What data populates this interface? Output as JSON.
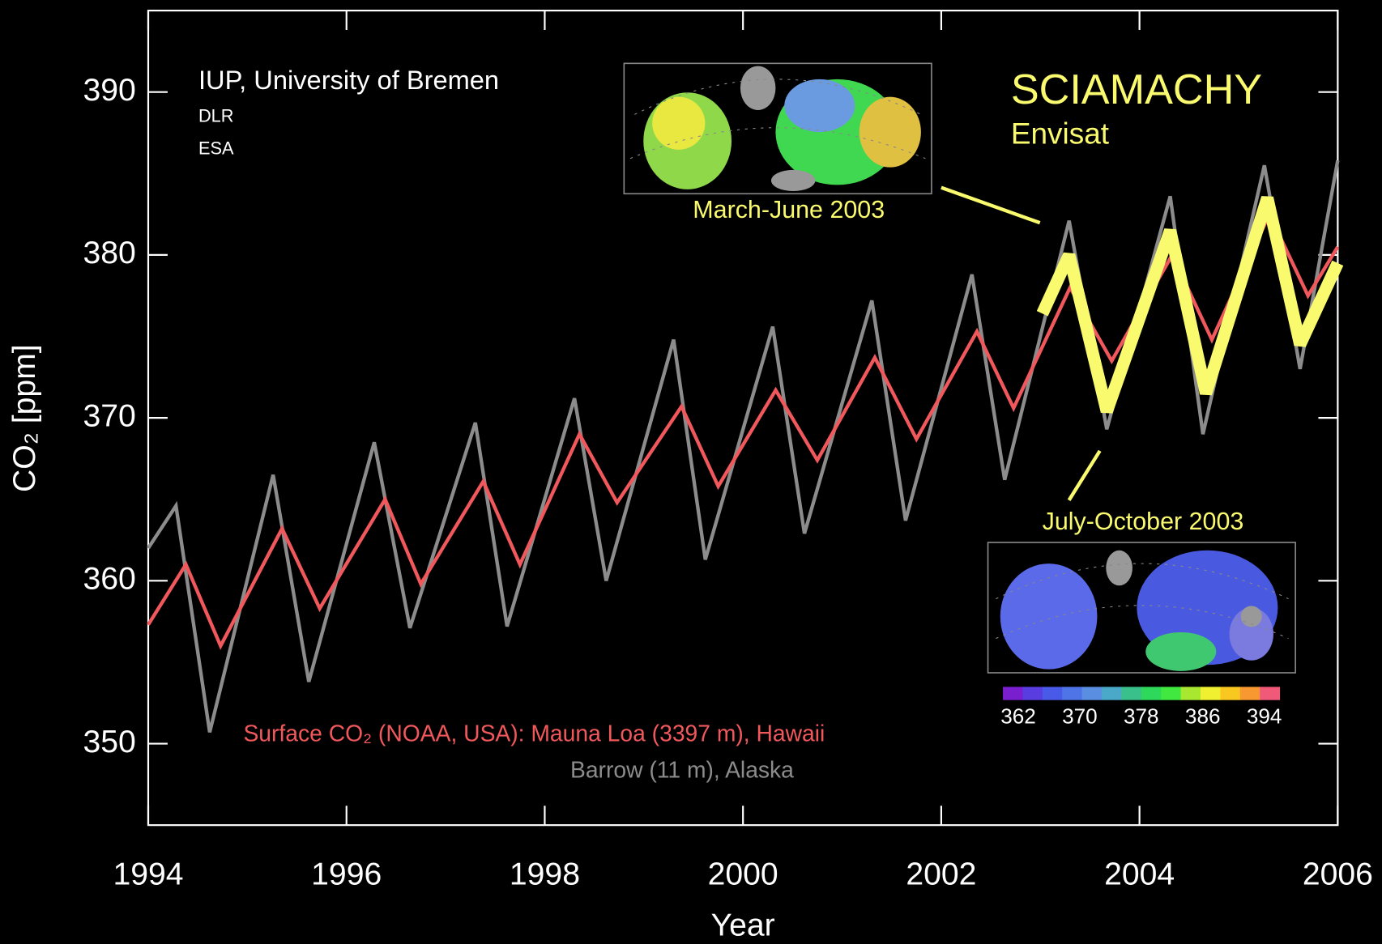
{
  "chart_data": {
    "type": "line",
    "x_label": "Year",
    "y_label": "CO₂ [ppm]",
    "xlim": [
      1994,
      2006
    ],
    "xticks": [
      1994,
      1996,
      1998,
      2000,
      2002,
      2004,
      2006
    ],
    "ylim": [
      345,
      395
    ],
    "yticks": [
      350,
      360,
      370,
      380,
      390
    ],
    "series": [
      {
        "name": "Barrow (11 m), Alaska",
        "color": "#8c8c8c",
        "linewidth": 4,
        "x": [
          1994.0,
          1994.28,
          1994.62,
          1995.26,
          1995.62,
          1996.28,
          1996.64,
          1997.3,
          1997.62,
          1998.3,
          1998.62,
          1999.3,
          1999.62,
          2000.3,
          2000.62,
          2001.3,
          2001.64,
          2002.31,
          2002.64,
          2003.29,
          2003.67,
          2004.31,
          2004.64,
          2005.26,
          2005.62,
          2006.0
        ],
        "values": [
          362,
          364.6,
          350.7,
          366.5,
          353.8,
          368.5,
          357.1,
          369.7,
          357.2,
          371.2,
          360.0,
          374.8,
          361.3,
          375.6,
          362.9,
          377.2,
          363.7,
          378.8,
          366.2,
          382.1,
          369.3,
          383.6,
          369.0,
          385.5,
          373.0,
          385.8
        ]
      },
      {
        "name": "Surface CO₂ (NOAA, USA): Mauna Loa (3397 m), Hawaii",
        "color": "#f0585c",
        "linewidth": 4,
        "x": [
          1994.0,
          1994.38,
          1994.73,
          1995.35,
          1995.73,
          1996.39,
          1996.75,
          1997.38,
          1997.75,
          1998.35,
          1998.73,
          1999.38,
          1999.75,
          2000.33,
          2000.75,
          2001.33,
          2001.75,
          2002.36,
          2002.73,
          2003.3,
          2003.72,
          2004.33,
          2004.73,
          2005.31,
          2005.7,
          2006.0
        ],
        "values": [
          357.3,
          361.0,
          356.0,
          363.2,
          358.3,
          365.0,
          359.8,
          366.1,
          361.0,
          369.0,
          364.8,
          370.7,
          365.8,
          371.7,
          367.4,
          373.7,
          368.7,
          375.3,
          370.6,
          378.0,
          373.5,
          380.0,
          374.8,
          382.5,
          377.5,
          380.5
        ]
      },
      {
        "name": "SCIAMACHY",
        "color": "#fafa6e",
        "linewidth": 14,
        "x": [
          2003.02,
          2003.29,
          2003.67,
          2004.31,
          2004.67,
          2005.29,
          2005.62,
          2006.0
        ],
        "values": [
          376.4,
          380.0,
          370.4,
          381.5,
          371.5,
          383.5,
          374.5,
          379.5
        ]
      }
    ],
    "annotations": {
      "institute": "IUP, University of Bremen",
      "partner1": "DLR",
      "partner2": "ESA",
      "satellite": "Envisat",
      "map1_label": "March-June 2003",
      "map2_label": "July-October 2003"
    },
    "colorbar": {
      "lim": [
        360,
        396
      ],
      "ticks": [
        362,
        370,
        378,
        386,
        394
      ],
      "colors": [
        "#7a1fd0",
        "#5a3de0",
        "#4a5ae8",
        "#4f74e8",
        "#5a8ee0",
        "#4aa8c8",
        "#3ac08a",
        "#2ed85a",
        "#40e840",
        "#a8e830",
        "#f0f030",
        "#f8c820",
        "#f89830",
        "#f05a78"
      ]
    }
  }
}
